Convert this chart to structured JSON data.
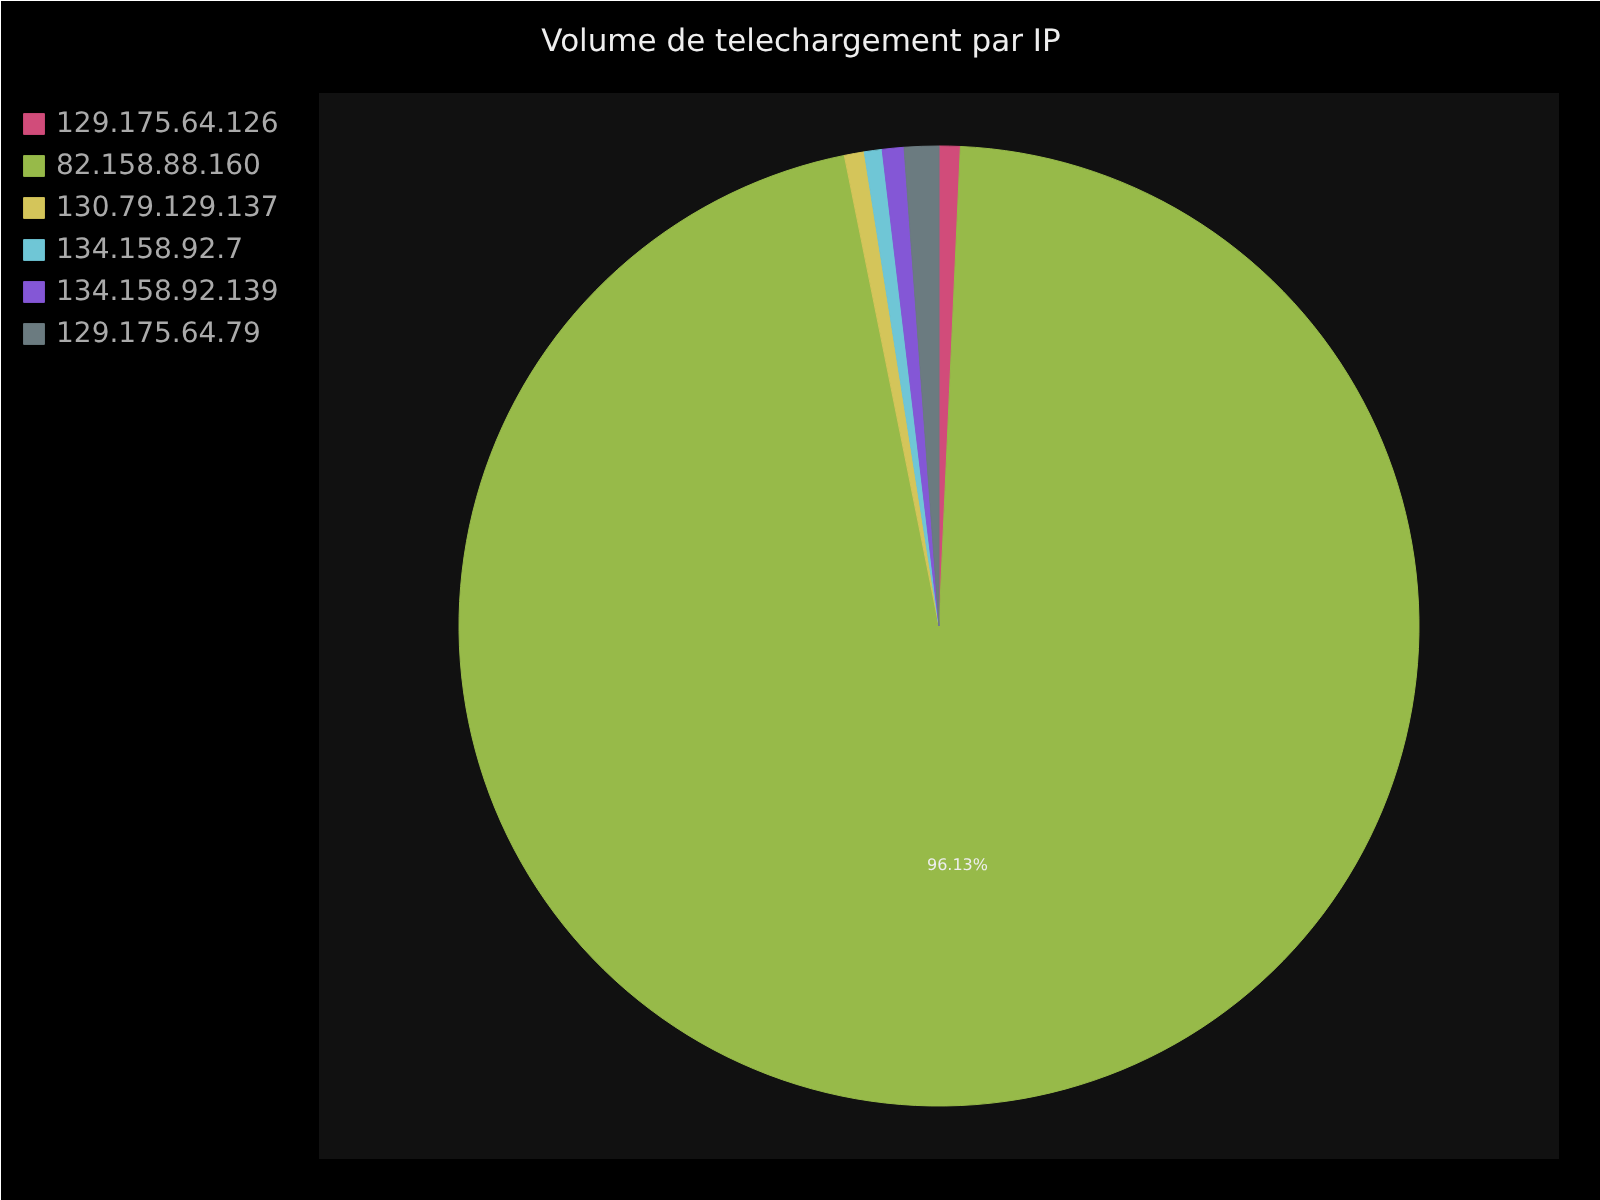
{
  "chart_data": {
    "type": "pie",
    "title": "Volume de telechargement par IP",
    "categories": [
      "129.175.64.126",
      "82.158.88.160",
      "130.79.129.137",
      "134.158.92.7",
      "134.158.92.139",
      "129.175.64.79"
    ],
    "values": [
      0.71,
      96.13,
      0.67,
      0.6,
      0.73,
      1.16
    ],
    "colors": [
      "#d14c7a",
      "#97ba49",
      "#d4c55a",
      "#6fc6d6",
      "#8457d6",
      "#6b7b80"
    ],
    "value_labels": [
      null,
      "96.13%",
      null,
      null,
      null,
      null
    ],
    "legend": "top left"
  }
}
